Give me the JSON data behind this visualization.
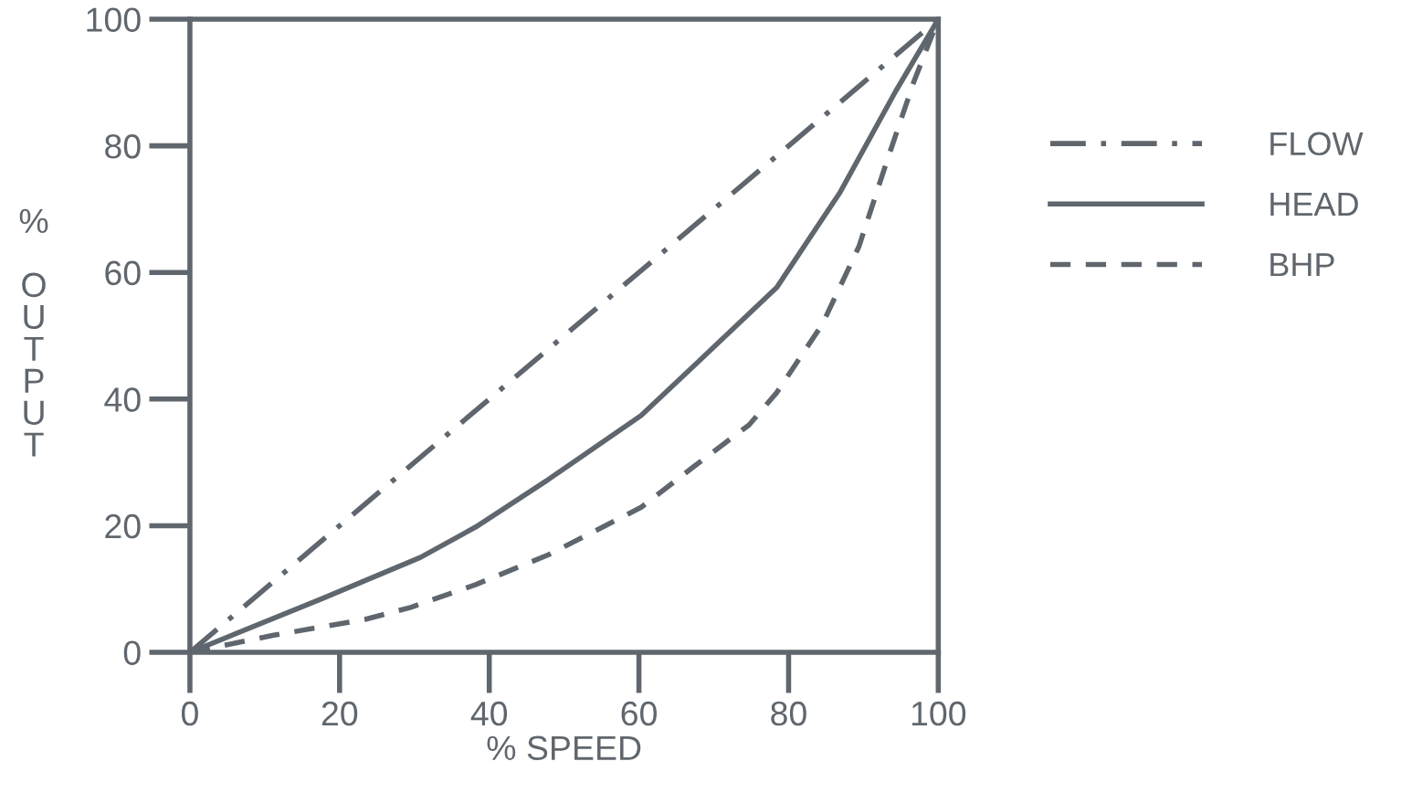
{
  "chart_data": {
    "type": "line",
    "xlabel": "% SPEED",
    "ylabel": "% OUTPUT",
    "xlim": [
      0,
      100
    ],
    "ylim": [
      0,
      100
    ],
    "xticks": [
      0,
      20,
      40,
      60,
      80,
      100
    ],
    "yticks": [
      0,
      20,
      40,
      60,
      80,
      100
    ],
    "grid": false,
    "legend": "right",
    "marker": "none",
    "series": [
      {
        "name": "FLOW",
        "color": "#5f666d",
        "line_style": "dashdot",
        "x": [
          0,
          100
        ],
        "values": [
          0,
          100
        ]
      },
      {
        "name": "HEAD",
        "color": "#5f666d",
        "line_style": "solid",
        "x": [
          0,
          17.7,
          30.8,
          38.2,
          47.9,
          60.3,
          67.4,
          78.4,
          86.9,
          94.3,
          100
        ],
        "values": [
          0,
          8.5,
          15,
          19.8,
          27.3,
          37.4,
          45.3,
          57.6,
          72.7,
          88.6,
          100
        ]
      },
      {
        "name": "BHP",
        "color": "#5f666d",
        "line_style": "dashed",
        "x": [
          0,
          11.2,
          23.4,
          29.5,
          38.2,
          47.9,
          60.3,
          67.4,
          74.7,
          78.4,
          84.5,
          89.4,
          93.0,
          96.7,
          100
        ],
        "values": [
          0,
          2.7,
          5.2,
          7.1,
          10.7,
          15.4,
          22.9,
          29.4,
          35.9,
          41.0,
          51.8,
          64.1,
          77.1,
          90.0,
          100
        ]
      }
    ]
  }
}
